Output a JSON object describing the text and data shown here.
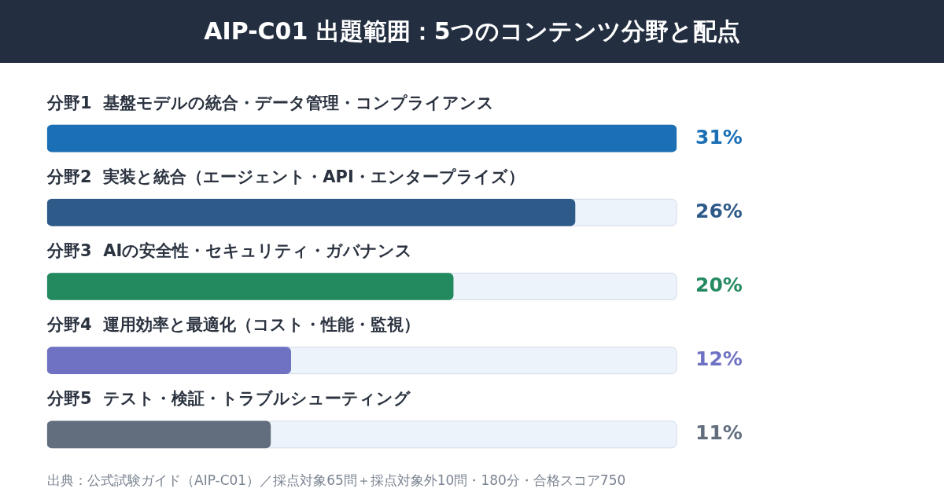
{
  "chart_data": {
    "type": "bar",
    "orientation": "horizontal",
    "title": "AIP-C01 出題範囲：5つのコンテンツ分野と配点",
    "categories": [
      "分野1  基盤モデルの統合・データ管理・コンプライアンス",
      "分野2  実装と統合（エージェント・API・エンタープライズ）",
      "分野3  AIの安全性・セキュリティ・ガバナンス",
      "分野4  運用効率と最適化（コスト・性能・監視）",
      "分野5  テスト・検証・トラブルシューティング"
    ],
    "values": [
      31,
      26,
      20,
      12,
      11
    ],
    "colors": [
      "#1a6fb5",
      "#2e5a8a",
      "#238a60",
      "#6f72c2",
      "#626e7e"
    ],
    "value_labels": [
      "31%",
      "26%",
      "20%",
      "12%",
      "11%"
    ],
    "annotations": [
      "出典：公式試験ガイド（AIP-C01）／採点対象65問＋採点対象外10問・180分・合格スコア750"
    ],
    "legend": false
  }
}
